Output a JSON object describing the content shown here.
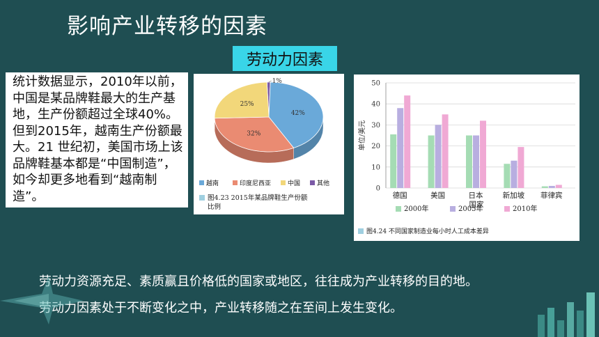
{
  "slide": {
    "title": "影响产业转移的因素",
    "tag": "劳动力因素",
    "paragraph": "统计数据显示，2010年以前，中国是某品牌鞋最大的生产基地，生产份额超过全球40%。但到2015年，越南生产份额最大。21 世纪初，美国市场上该品牌鞋基本都是“中国制造”，如今却更多地看到“越南制造”。",
    "bottom_lines": [
      "劳动力资源充足、素质赢且价格低的国家或地区，往往成为产业转移的目的地。",
      "劳动力因素处于不断变化之中，产业转移随之在至间上发生变化。"
    ]
  },
  "pie": {
    "caption_line1": "图4.23   2015年某品牌鞋生产份额",
    "caption_line2": "比例",
    "colors": {
      "越南": "#6aa9d9",
      "印度尼西亚": "#ea8b72",
      "中国": "#f2d77a",
      "其他": "#7b5aa6"
    }
  },
  "bar": {
    "caption": "图4.24   不同国家制造业每小时人工成本差异",
    "colors": [
      "#a5dcb4",
      "#b8aee0",
      "#f0a9d4"
    ]
  },
  "chart_data": [
    {
      "type": "pie",
      "categories": [
        "越南",
        "印度尼西亚",
        "中国",
        "其他"
      ],
      "values": [
        42,
        32,
        25,
        1
      ],
      "labels": [
        "42%",
        "32%",
        "25%",
        "1%"
      ]
    },
    {
      "type": "bar",
      "categories": [
        "德国",
        "美国",
        "日本\n国家",
        "新加坡",
        "菲律宾"
      ],
      "tick_labels": [
        "德国",
        "美国",
        "日本",
        "新加坡",
        "菲律宾"
      ],
      "xlabel": "国家",
      "ylabel": "单位/美元",
      "ylim": [
        0,
        50
      ],
      "yticks": [
        "0",
        "10",
        "20",
        "30",
        "40",
        "50"
      ],
      "series": [
        {
          "name": "2000年",
          "values": [
            25.5,
            25,
            25,
            11.5,
            0.8
          ]
        },
        {
          "name": "2005年",
          "values": [
            38,
            30,
            25,
            13,
            1
          ]
        },
        {
          "name": "2010年",
          "values": [
            44,
            35,
            32,
            19.5,
            1.5
          ]
        }
      ]
    }
  ]
}
